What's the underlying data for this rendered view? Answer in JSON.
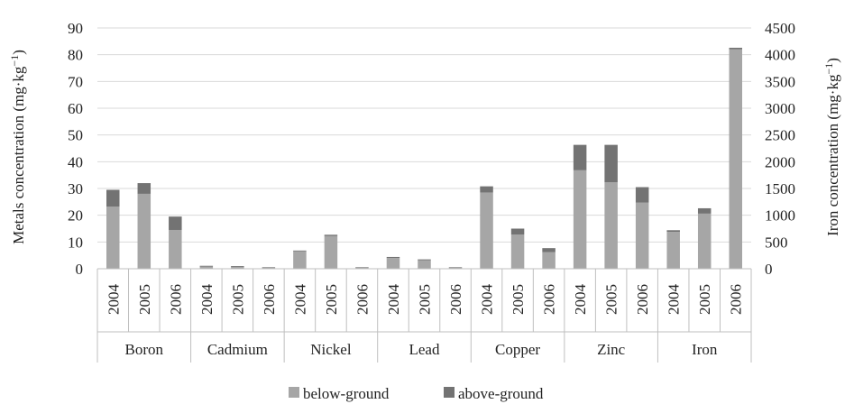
{
  "chart_data": {
    "type": "bar",
    "stacked": true,
    "left_axis": {
      "label_prefix": "Metals concentration (mg·kg",
      "label_sup": "−1",
      "label_suffix": ")",
      "ylim": [
        0,
        90
      ],
      "ticks": [
        "0",
        "10",
        "20",
        "30",
        "40",
        "50",
        "60",
        "70",
        "80",
        "90"
      ]
    },
    "right_axis": {
      "label_prefix": "Iron concentration (mg·kg",
      "label_sup": "−1",
      "label_suffix": ")",
      "ylim": [
        0,
        4500
      ],
      "ticks": [
        "0",
        "500",
        "1000",
        "1500",
        "2000",
        "2500",
        "3000",
        "3500",
        "4000",
        "4500"
      ]
    },
    "grid": true,
    "legend_position": "bottom",
    "groups": [
      {
        "name": "Boron",
        "axis": "left",
        "years": [
          "2004",
          "2005",
          "2006"
        ],
        "below": [
          23.2,
          28.0,
          14.5
        ],
        "above": [
          6.3,
          4.0,
          5.0
        ]
      },
      {
        "name": "Cadmium",
        "axis": "left",
        "years": [
          "2004",
          "2005",
          "2006"
        ],
        "below": [
          0.8,
          0.7,
          0.4
        ],
        "above": [
          0.3,
          0.3,
          0.2
        ]
      },
      {
        "name": "Nickel",
        "axis": "left",
        "years": [
          "2004",
          "2005",
          "2006"
        ],
        "below": [
          6.5,
          12.2,
          0.4
        ],
        "above": [
          0.3,
          0.5,
          0.2
        ]
      },
      {
        "name": "Lead",
        "axis": "left",
        "years": [
          "2004",
          "2005",
          "2006"
        ],
        "below": [
          4.0,
          3.2,
          0.4
        ],
        "above": [
          0.4,
          0.3,
          0.2
        ]
      },
      {
        "name": "Copper",
        "axis": "left",
        "years": [
          "2004",
          "2005",
          "2006"
        ],
        "below": [
          28.5,
          12.8,
          6.2
        ],
        "above": [
          2.3,
          2.2,
          1.5
        ]
      },
      {
        "name": "Zinc",
        "axis": "left",
        "years": [
          "2004",
          "2005",
          "2006"
        ],
        "below": [
          36.8,
          32.3,
          24.7
        ],
        "above": [
          9.5,
          14.0,
          5.8
        ]
      },
      {
        "name": "Iron",
        "axis": "right",
        "years": [
          "2004",
          "2005",
          "2006"
        ],
        "below": [
          690,
          1030,
          4100
        ],
        "above": [
          30,
          100,
          30
        ]
      }
    ],
    "series": [
      {
        "name": "below-ground",
        "color": "#a6a6a6"
      },
      {
        "name": "above-ground",
        "color": "#737373"
      }
    ],
    "grid_color": "#d9d9d9",
    "axis_color": "#bfbfbf"
  }
}
